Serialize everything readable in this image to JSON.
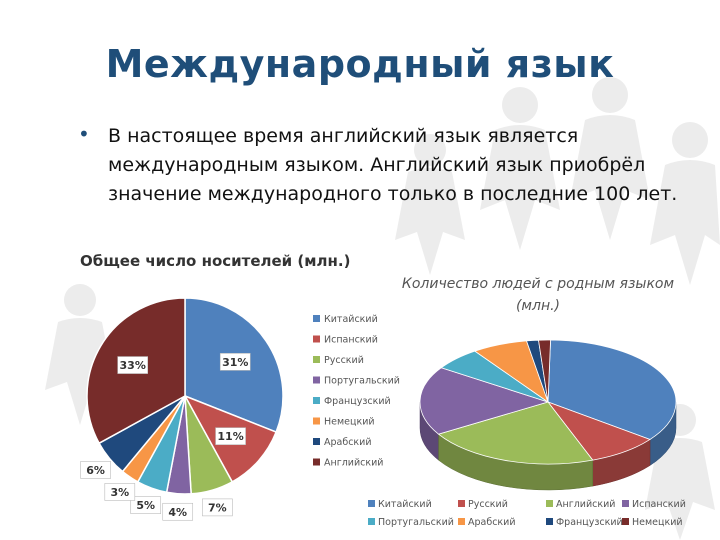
{
  "slide": {
    "title": "Международный язык",
    "bullet": "В настоящее время английский язык является международным языком. Английский язык приобрёл значение международного только в последние 100 лет."
  },
  "colors": {
    "title": "#1f4e79",
    "background_figures": "#e6e6e6"
  },
  "chart_data": [
    {
      "type": "pie",
      "title": "Общее число носителей (млн.)",
      "categories": [
        "Китайский",
        "Испанский",
        "Русский",
        "Португальский",
        "Французский",
        "Немецкий",
        "Арабский",
        "Английский"
      ],
      "values": [
        31,
        11,
        7,
        4,
        5,
        3,
        6,
        33
      ],
      "labels": [
        "31%",
        "11%",
        "7%",
        "4%",
        "5%",
        "3%",
        "6%",
        "33%"
      ],
      "colors": [
        "#4f81bd",
        "#c0504d",
        "#9bbb59",
        "#8064a2",
        "#4bacc6",
        "#f79646",
        "#1f497d",
        "#772c2a"
      ],
      "legend": "right"
    },
    {
      "type": "pie",
      "title": "Количество людей с родным языком (млн.)",
      "categories": [
        "Китайский",
        "Русский",
        "Английский",
        "Испанский",
        "Португальский",
        "Арабский",
        "Французский",
        "Немецкий"
      ],
      "values": [
        35,
        9,
        22,
        18,
        6,
        7,
        1.5,
        1.5
      ],
      "colors": [
        "#4f81bd",
        "#c0504d",
        "#9bbb59",
        "#8064a2",
        "#4bacc6",
        "#f79646",
        "#1f497d",
        "#772c2a"
      ],
      "legend": "bottom",
      "style": "3d"
    }
  ]
}
